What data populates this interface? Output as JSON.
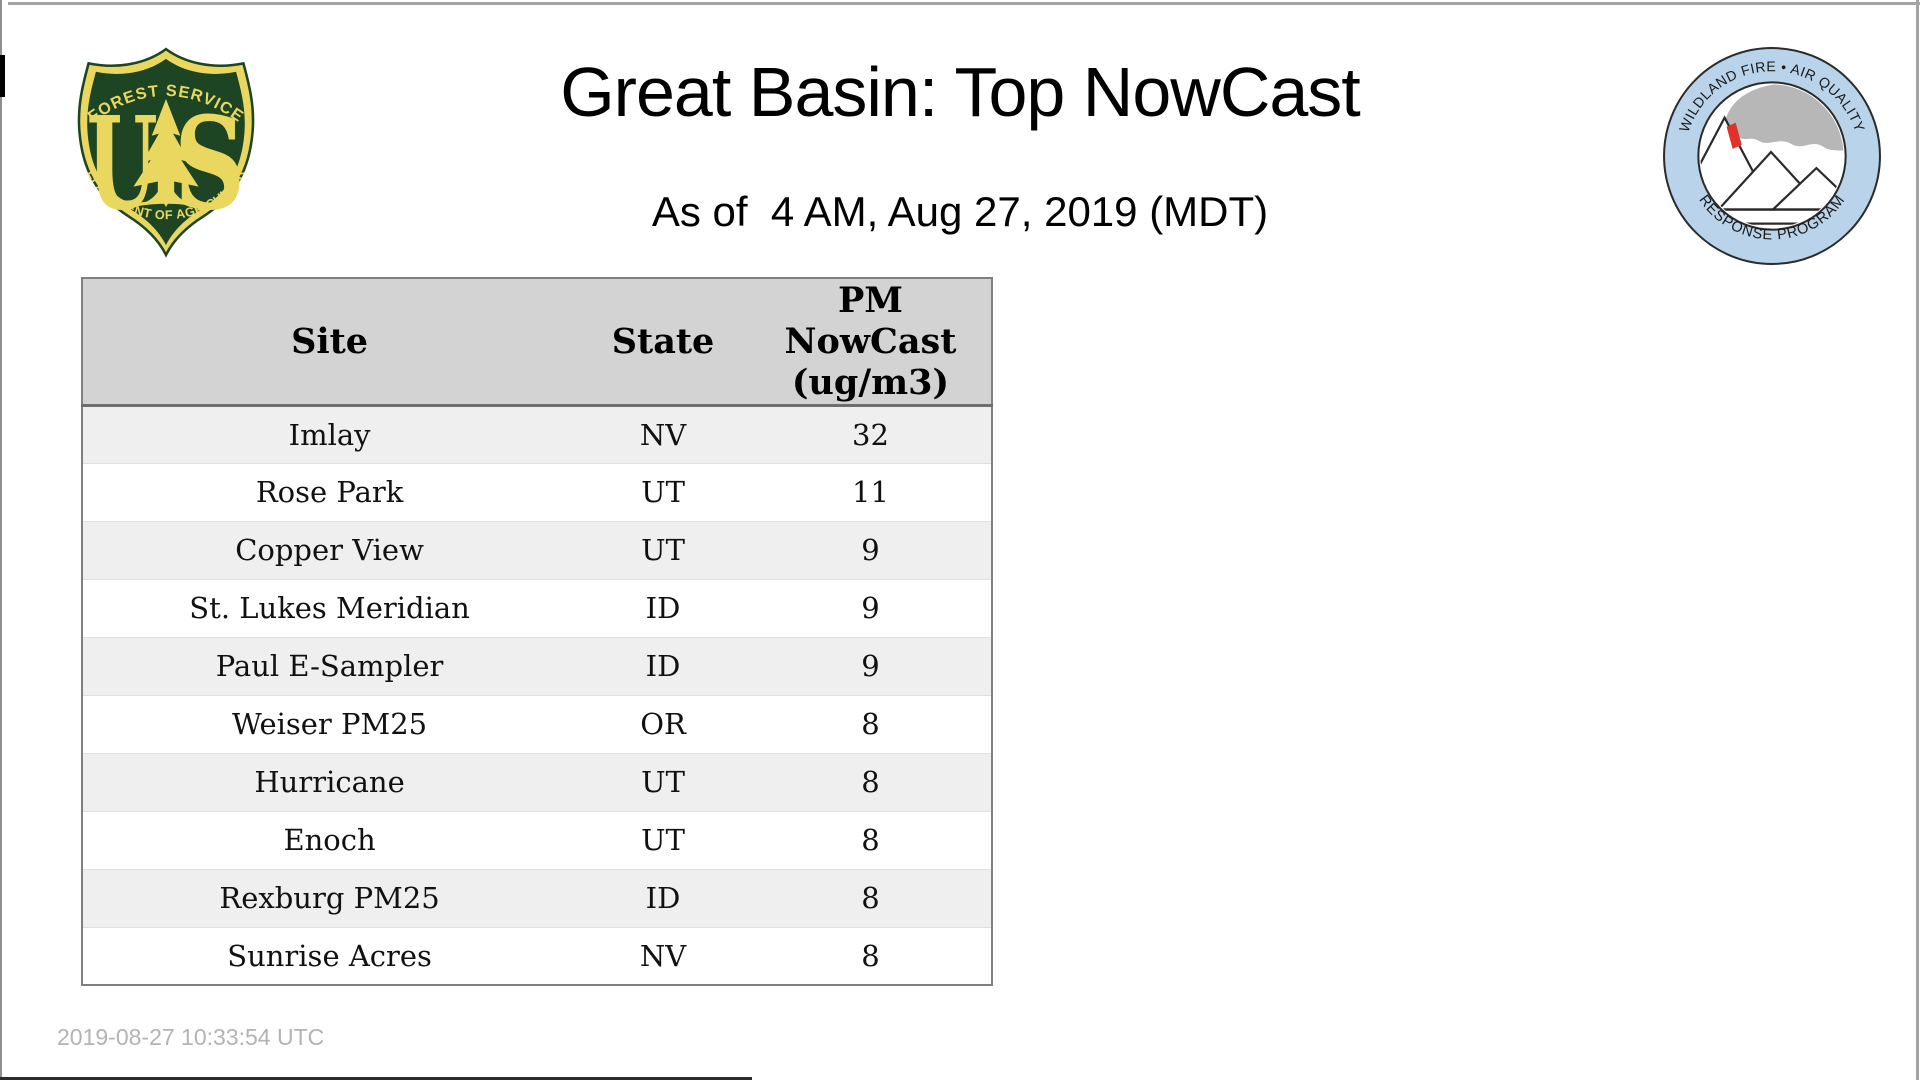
{
  "page": {
    "header": {
      "title": "Great Basin: Top NowCast",
      "subtitle": "As of  4 AM, Aug 27, 2019 (MDT)"
    },
    "footer": {
      "timestamp": "2019-08-27 10:33:54 UTC"
    }
  },
  "logos": {
    "usfs": {
      "label": "US Forest Service shield",
      "top_arc": "FOREST SERVICE",
      "letter_u": "U",
      "letter_s": "S",
      "bottom_arc": "DEPARTMENT OF AGRICULTURE",
      "shield_green": "#1d4523",
      "shield_yellow": "#e9d75f"
    },
    "wfaqrp": {
      "label": "Wildland Fire Air Quality Response Program badge",
      "top_arc": "WILDLAND FIRE • AIR QUALITY",
      "bottom_arc": "RESPONSE PROGRAM",
      "ring_blue": "#b9d3ea",
      "smoke_gray": "#b7b7b7",
      "flame_red": "#e0312a",
      "outline_dark": "#2b2b2b"
    }
  },
  "table": {
    "headers": [
      "Site",
      "State",
      "PM NowCast (ug/m3)"
    ],
    "header_col3_lines": [
      "PM",
      "NowCast",
      "(ug/m3)"
    ],
    "rows": [
      {
        "site": "Imlay",
        "state": "NV",
        "nowcast": "32"
      },
      {
        "site": "Rose Park",
        "state": "UT",
        "nowcast": "11"
      },
      {
        "site": "Copper View",
        "state": "UT",
        "nowcast": "9"
      },
      {
        "site": "St. Lukes Meridian",
        "state": "ID",
        "nowcast": "9"
      },
      {
        "site": "Paul E-Sampler",
        "state": "ID",
        "nowcast": "9"
      },
      {
        "site": "Weiser PM25",
        "state": "OR",
        "nowcast": "8"
      },
      {
        "site": "Hurricane",
        "state": "UT",
        "nowcast": "8"
      },
      {
        "site": "Enoch",
        "state": "UT",
        "nowcast": "8"
      },
      {
        "site": "Rexburg PM25",
        "state": "ID",
        "nowcast": "8"
      },
      {
        "site": "Sunrise Acres",
        "state": "NV",
        "nowcast": "8"
      }
    ],
    "colors": {
      "header_bg": "#d3d3d3",
      "row_alt_bg": "#efefef",
      "border": "#808080",
      "header_rule": "#6e6e6e"
    }
  },
  "chart_data": {
    "type": "table",
    "title": "Great Basin: Top NowCast",
    "as_of": "4 AM, Aug 27, 2019 (MDT)",
    "columns": [
      "Site",
      "State",
      "PM NowCast (ug/m3)"
    ],
    "rows": [
      [
        "Imlay",
        "NV",
        32
      ],
      [
        "Rose Park",
        "UT",
        11
      ],
      [
        "Copper View",
        "UT",
        9
      ],
      [
        "St. Lukes Meridian",
        "ID",
        9
      ],
      [
        "Paul E-Sampler",
        "ID",
        9
      ],
      [
        "Weiser PM25",
        "OR",
        8
      ],
      [
        "Hurricane",
        "UT",
        8
      ],
      [
        "Enoch",
        "UT",
        8
      ],
      [
        "Rexburg PM25",
        "ID",
        8
      ],
      [
        "Sunrise Acres",
        "NV",
        8
      ]
    ]
  }
}
